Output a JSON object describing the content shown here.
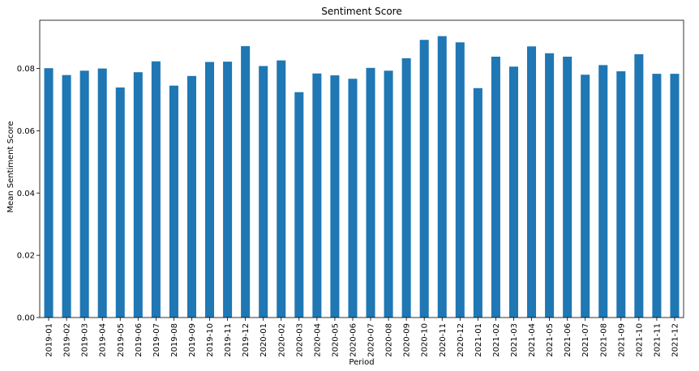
{
  "chart_data": {
    "type": "bar",
    "title": "Sentiment Score",
    "xlabel": "Period",
    "ylabel": "Mean Sentiment Score",
    "ylim": [
      0,
      0.0955
    ],
    "yticks": [
      0.0,
      0.02,
      0.04,
      0.06,
      0.08
    ],
    "ytick_labels": [
      "0.00",
      "0.02",
      "0.04",
      "0.06",
      "0.08"
    ],
    "grid": false,
    "legend": "none",
    "bar_color": "#1f77b4",
    "categories": [
      "2019-01",
      "2019-02",
      "2019-03",
      "2019-04",
      "2019-05",
      "2019-06",
      "2019-07",
      "2019-08",
      "2019-09",
      "2019-10",
      "2019-11",
      "2019-12",
      "2020-01",
      "2020-02",
      "2020-03",
      "2020-04",
      "2020-05",
      "2020-06",
      "2020-07",
      "2020-08",
      "2020-09",
      "2020-10",
      "2020-11",
      "2020-12",
      "2021-01",
      "2021-02",
      "2021-03",
      "2021-04",
      "2021-05",
      "2021-06",
      "2021-07",
      "2021-08",
      "2021-09",
      "2021-10",
      "2021-11",
      "2021-12"
    ],
    "values": [
      0.0801,
      0.0779,
      0.0793,
      0.08,
      0.0739,
      0.0788,
      0.0823,
      0.0745,
      0.0776,
      0.0821,
      0.0822,
      0.0872,
      0.0808,
      0.0826,
      0.0724,
      0.0784,
      0.0778,
      0.0767,
      0.0802,
      0.0793,
      0.0833,
      0.0892,
      0.0904,
      0.0884,
      0.0737,
      0.0838,
      0.0806,
      0.0871,
      0.0849,
      0.0838,
      0.078,
      0.0811,
      0.0791,
      0.0846,
      0.0783,
      0.0783
    ]
  }
}
